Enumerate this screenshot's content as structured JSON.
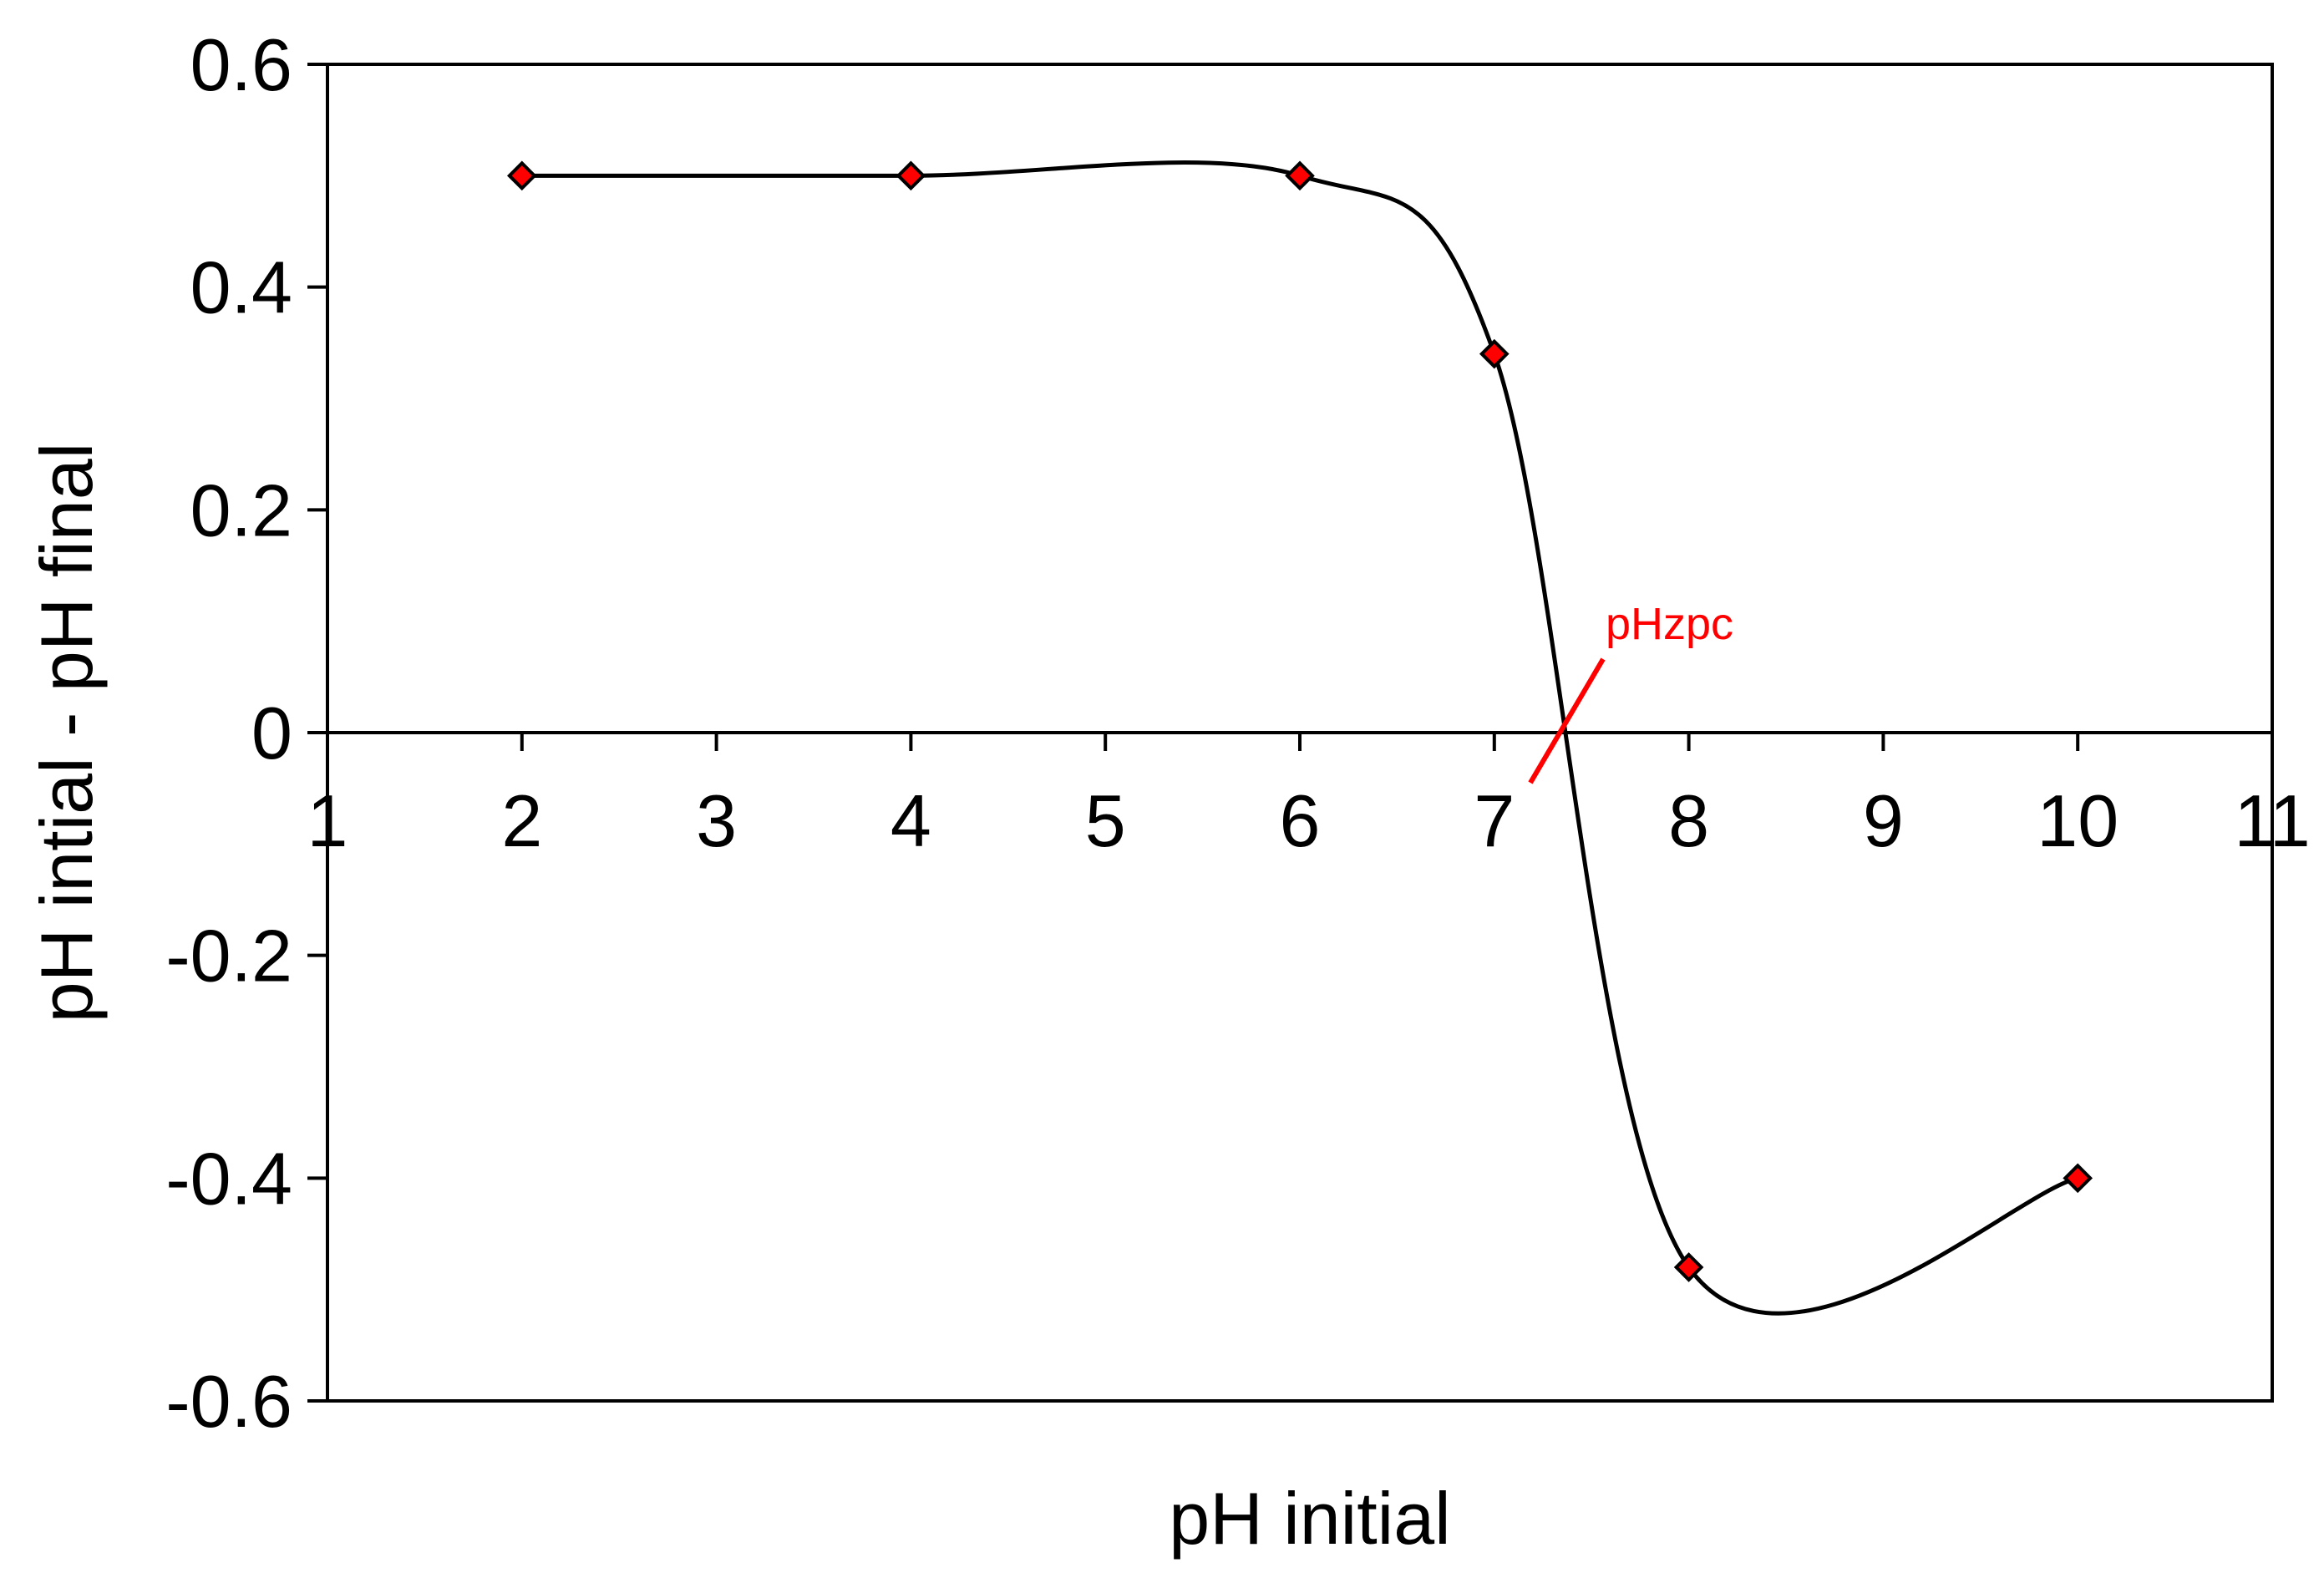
{
  "chart_data": {
    "type": "line",
    "title": "",
    "xlabel": "pH initial",
    "ylabel": "pH intial - pH final",
    "xlim": [
      1,
      11
    ],
    "ylim": [
      -0.6,
      0.6
    ],
    "xticks": [
      1,
      2,
      3,
      4,
      5,
      6,
      7,
      8,
      9,
      10,
      11
    ],
    "xtick_labels": [
      "1",
      "2",
      "3",
      "4",
      "5",
      "6",
      "7",
      "8",
      "9",
      "10",
      "11"
    ],
    "x_axis_crosses_at_y": 0,
    "x_spacing": "categorical",
    "yticks": [
      0.6,
      0.4,
      0.2,
      0,
      -0.2,
      -0.4,
      -0.6
    ],
    "ytick_labels": [
      "0.6",
      "0.4",
      "0.2",
      "0",
      "-0.2",
      "-0.4",
      "-0.6"
    ],
    "grid": false,
    "legend": "none",
    "series": [
      {
        "x": [
          2,
          4,
          6,
          7,
          8,
          10
        ],
        "y": [
          0.5,
          0.5,
          0.5,
          0.34,
          -0.48,
          -0.4
        ],
        "smooth": true,
        "line_color": "#000000",
        "marker": "diamond",
        "marker_color": "#ff0000",
        "marker_edge_color": "#000000"
      }
    ],
    "annotations": [
      {
        "text": "pHzpc",
        "x": 7.35,
        "y": 0,
        "color": "#ff0000"
      }
    ]
  }
}
